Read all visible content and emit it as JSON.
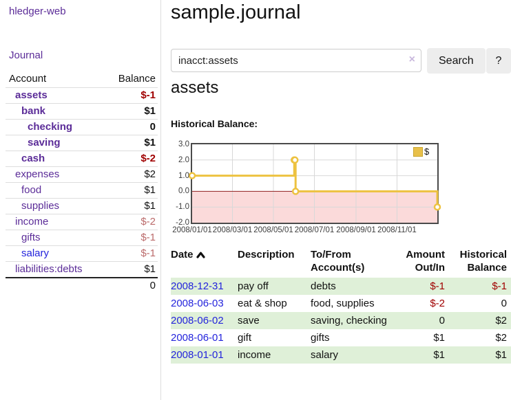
{
  "app": {
    "title": "hledger-web",
    "journal_link": "Journal"
  },
  "colors": {
    "link_purple": "#5b2c98",
    "link_blue": "#2323dc",
    "negative_strong": "#a00000",
    "negative_soft": "#bb6a6a",
    "row_stripe_green": "#dff0d8",
    "chart_series_gold": "#edc240",
    "negative_zone_pink": "#fbdada",
    "zero_line_red": "#8f1f1f"
  },
  "sidebar": {
    "headers": {
      "account": "Account",
      "balance": "Balance"
    },
    "accounts": [
      {
        "name": "assets",
        "balance": "$-1",
        "depth": 0,
        "emphasis": true,
        "link_color": "purple",
        "balance_style": "negative-strong"
      },
      {
        "name": "bank",
        "balance": "$1",
        "depth": 1,
        "emphasis": true,
        "link_color": "purple",
        "balance_style": "normal"
      },
      {
        "name": "checking",
        "balance": "0",
        "depth": 2,
        "emphasis": true,
        "link_color": "purple",
        "balance_style": "normal"
      },
      {
        "name": "saving",
        "balance": "$1",
        "depth": 2,
        "emphasis": true,
        "link_color": "purple",
        "balance_style": "normal"
      },
      {
        "name": "cash",
        "balance": "$-2",
        "depth": 1,
        "emphasis": true,
        "link_color": "purple",
        "balance_style": "negative-strong"
      },
      {
        "name": "expenses",
        "balance": "$2",
        "depth": 0,
        "emphasis": false,
        "link_color": "purple",
        "balance_style": "normal"
      },
      {
        "name": "food",
        "balance": "$1",
        "depth": 1,
        "emphasis": false,
        "link_color": "purple",
        "balance_style": "normal"
      },
      {
        "name": "supplies",
        "balance": "$1",
        "depth": 1,
        "emphasis": false,
        "link_color": "purple",
        "balance_style": "normal"
      },
      {
        "name": "income",
        "balance": "$-2",
        "depth": 0,
        "emphasis": false,
        "link_color": "purple",
        "balance_style": "negative-soft"
      },
      {
        "name": "gifts",
        "balance": "$-1",
        "depth": 1,
        "emphasis": false,
        "link_color": "purple",
        "balance_style": "negative-soft"
      },
      {
        "name": "salary",
        "balance": "$-1",
        "depth": 1,
        "emphasis": false,
        "link_color": "blue",
        "balance_style": "negative-soft"
      },
      {
        "name": "liabilities:debts",
        "balance": "$1",
        "depth": 0,
        "emphasis": false,
        "link_color": "purple",
        "balance_style": "normal"
      }
    ],
    "total": "0"
  },
  "main": {
    "title": "sample.journal",
    "search": {
      "value": "inacct:assets",
      "clear_icon": "×",
      "button_label": "Search",
      "help_label": "?"
    },
    "account_heading": "assets",
    "chart_heading": "Historical Balance:"
  },
  "chart_data": {
    "type": "line",
    "title": "Historical Balance",
    "series": [
      {
        "name": "$",
        "color": "#edc240",
        "step": true,
        "points": [
          [
            "2008-01-01",
            1
          ],
          [
            "2008-06-01",
            2
          ],
          [
            "2008-06-02",
            2
          ],
          [
            "2008-06-03",
            0
          ],
          [
            "2008-12-31",
            -1
          ]
        ]
      }
    ],
    "xlim": [
      "2008-01-01",
      "2008-12-31"
    ],
    "ylim": [
      -2,
      3
    ],
    "y_ticks": [
      {
        "label": "3.0",
        "value": 3
      },
      {
        "label": "2.0",
        "value": 2
      },
      {
        "label": "1.0",
        "value": 1
      },
      {
        "label": "0.0",
        "value": 0
      },
      {
        "label": "-1.0",
        "value": -1
      },
      {
        "label": "-2.0",
        "value": -2
      }
    ],
    "x_ticks": [
      {
        "label": "2008/01/01",
        "date": "2008-01-01"
      },
      {
        "label": "2008/03/01",
        "date": "2008-03-01"
      },
      {
        "label": "2008/05/01",
        "date": "2008-05-01"
      },
      {
        "label": "2008/07/01",
        "date": "2008-07-01"
      },
      {
        "label": "2008/09/01",
        "date": "2008-09-01"
      },
      {
        "label": "2008/11/01",
        "date": "2008-11-01"
      }
    ],
    "grid": true,
    "legend": {
      "label": "$",
      "position": "top-right"
    },
    "negative_zone_color": "#fbdada",
    "zero_line_color": "#8f1f1f",
    "grid_color": "#d8d8d8"
  },
  "register": {
    "headers": [
      "Date",
      "Description",
      "To/From Account(s)",
      "Amount Out/In",
      "Historical Balance"
    ],
    "rows": [
      {
        "date": "2008-12-31",
        "description": "pay off",
        "accounts": "debts",
        "amount": "$-1",
        "balance": "$-1",
        "amount_negative": true,
        "balance_negative": true
      },
      {
        "date": "2008-06-03",
        "description": "eat & shop",
        "accounts": "food, supplies",
        "amount": "$-2",
        "balance": "0",
        "amount_negative": true,
        "balance_negative": false
      },
      {
        "date": "2008-06-02",
        "description": "save",
        "accounts": "saving, checking",
        "amount": "0",
        "balance": "$2",
        "amount_negative": false,
        "balance_negative": false
      },
      {
        "date": "2008-06-01",
        "description": "gift",
        "accounts": "gifts",
        "amount": "$1",
        "balance": "$2",
        "amount_negative": false,
        "balance_negative": false
      },
      {
        "date": "2008-01-01",
        "description": "income",
        "accounts": "salary",
        "amount": "$1",
        "balance": "$1",
        "amount_negative": false,
        "balance_negative": false
      }
    ]
  }
}
